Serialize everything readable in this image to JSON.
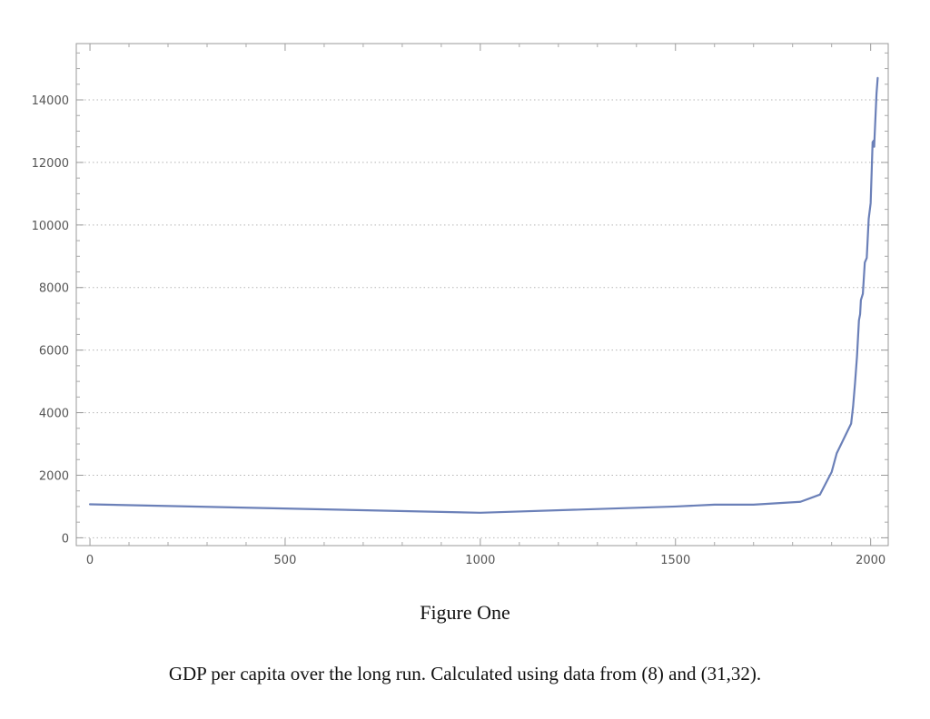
{
  "figure": {
    "title": "Figure One",
    "caption": "GDP per capita over the long run. Calculated using data from (8) and (31,32)."
  },
  "chart_data": {
    "type": "line",
    "title": "",
    "xlabel": "",
    "ylabel": "",
    "xlim": [
      -35,
      2045
    ],
    "ylim": [
      -250,
      15800
    ],
    "x_ticks": [
      0,
      500,
      1000,
      1500,
      2000
    ],
    "y_ticks": [
      0,
      2000,
      4000,
      6000,
      8000,
      10000,
      12000,
      14000
    ],
    "y_tick_labels": [
      "0",
      "2000",
      "4000",
      "6000",
      "8000",
      "10000",
      "12000",
      "14000"
    ],
    "grid": "horizontal-dotted",
    "line_color": "#6b80b8",
    "series": [
      {
        "x": [
          0,
          1000,
          1500,
          1600,
          1700,
          1820,
          1870,
          1900,
          1913,
          1950,
          1955,
          1960,
          1965,
          1970,
          1973,
          1975,
          1980,
          1985,
          1990,
          1995,
          2000,
          2005,
          2008,
          2009,
          2010,
          2015,
          2018
        ],
        "values": [
          1070,
          800,
          1000,
          1060,
          1060,
          1150,
          1380,
          2100,
          2700,
          3650,
          4200,
          4950,
          5800,
          6950,
          7150,
          7600,
          7800,
          8800,
          8950,
          10200,
          10700,
          12650,
          12700,
          12500,
          12800,
          14200,
          14700
        ]
      }
    ]
  }
}
